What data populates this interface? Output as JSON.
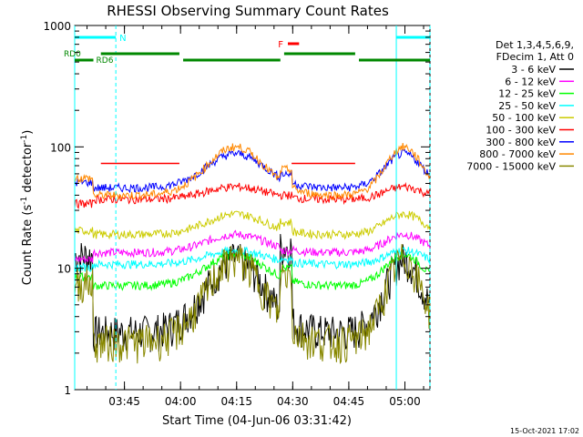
{
  "chart_data": {
    "type": "line",
    "title": "RHESSI Observing Summary Count Rates",
    "xlabel": "Start Time (04-Jun-06 03:31:42)",
    "ylabel_main": "Count Rate (s",
    "ylabel_sup1": "-1",
    "ylabel_mid": " detector",
    "ylabel_sup2": "-1",
    "ylabel_end": ")",
    "y_scale": "log",
    "ylim": [
      1,
      1000
    ],
    "xlim_minutes": [
      0,
      95
    ],
    "x_ticks": [
      {
        "label": "03:45",
        "minute": 13.3
      },
      {
        "label": "04:00",
        "minute": 28.3
      },
      {
        "label": "04:15",
        "minute": 43.3
      },
      {
        "label": "04:30",
        "minute": 58.3
      },
      {
        "label": "04:45",
        "minute": 73.3
      },
      {
        "label": "05:00",
        "minute": 88.3
      }
    ],
    "y_ticks": [
      {
        "label": "1",
        "value": 1
      },
      {
        "label": "10",
        "value": 10
      },
      {
        "label": "100",
        "value": 100
      },
      {
        "label": "1000",
        "value": 1000
      }
    ],
    "legend_header": [
      "Det 1,3,4,5,6,9,",
      "FDecim 1, Att 0"
    ],
    "series": [
      {
        "name": "3 - 6 keV",
        "color": "#000000",
        "base": 3,
        "sun": 12,
        "spike": 15
      },
      {
        "name": "6 - 12 keV",
        "color": "#ff00ff",
        "base": 13.5,
        "sun": 19,
        "spike": 14
      },
      {
        "name": "12 - 25 keV",
        "color": "#00ff00",
        "base": 7.2,
        "sun": 13,
        "spike": 10
      },
      {
        "name": "25 - 50 keV",
        "color": "#00ffff",
        "base": 10.8,
        "sun": 14,
        "spike": 12
      },
      {
        "name": "50 - 100 keV",
        "color": "#cccc00",
        "base": 19,
        "sun": 28,
        "spike": 24
      },
      {
        "name": "100 - 300 keV",
        "color": "#ff0000",
        "base": 37,
        "sun": 47,
        "spike": 40
      },
      {
        "name": "300 - 800 keV",
        "color": "#0000ff",
        "base": 46,
        "sun": 88,
        "spike": 60
      },
      {
        "name": "800 - 7000 keV",
        "color": "#ff8800",
        "base": 40,
        "sun": 100,
        "spike": 65
      },
      {
        "name": "7000 - 15000 keV",
        "color": "#888800",
        "base": 2.5,
        "sun": 12,
        "spike": 9
      }
    ],
    "red_top_segments": [
      [
        7,
        28
      ],
      [
        58,
        75
      ]
    ],
    "red_top_level": 73,
    "annotations": {
      "night": {
        "label": "N",
        "color": "#00ffff",
        "segments": [
          [
            0,
            11
          ],
          [
            86,
            96
          ]
        ]
      },
      "flare": {
        "label": "F",
        "color": "#ff0000",
        "segments": [
          [
            57,
            60
          ]
        ]
      },
      "rd0": {
        "label": "RD0",
        "color": "#008800",
        "segments": [
          [
            7,
            28
          ],
          [
            29,
            55
          ],
          [
            56,
            75
          ],
          [
            76,
            96
          ]
        ]
      },
      "rd6": {
        "label": "RD6",
        "color": "#008800",
        "segments": [
          [
            0,
            5
          ]
        ]
      }
    },
    "footer_date": "15-Oct-2021 17:02"
  }
}
